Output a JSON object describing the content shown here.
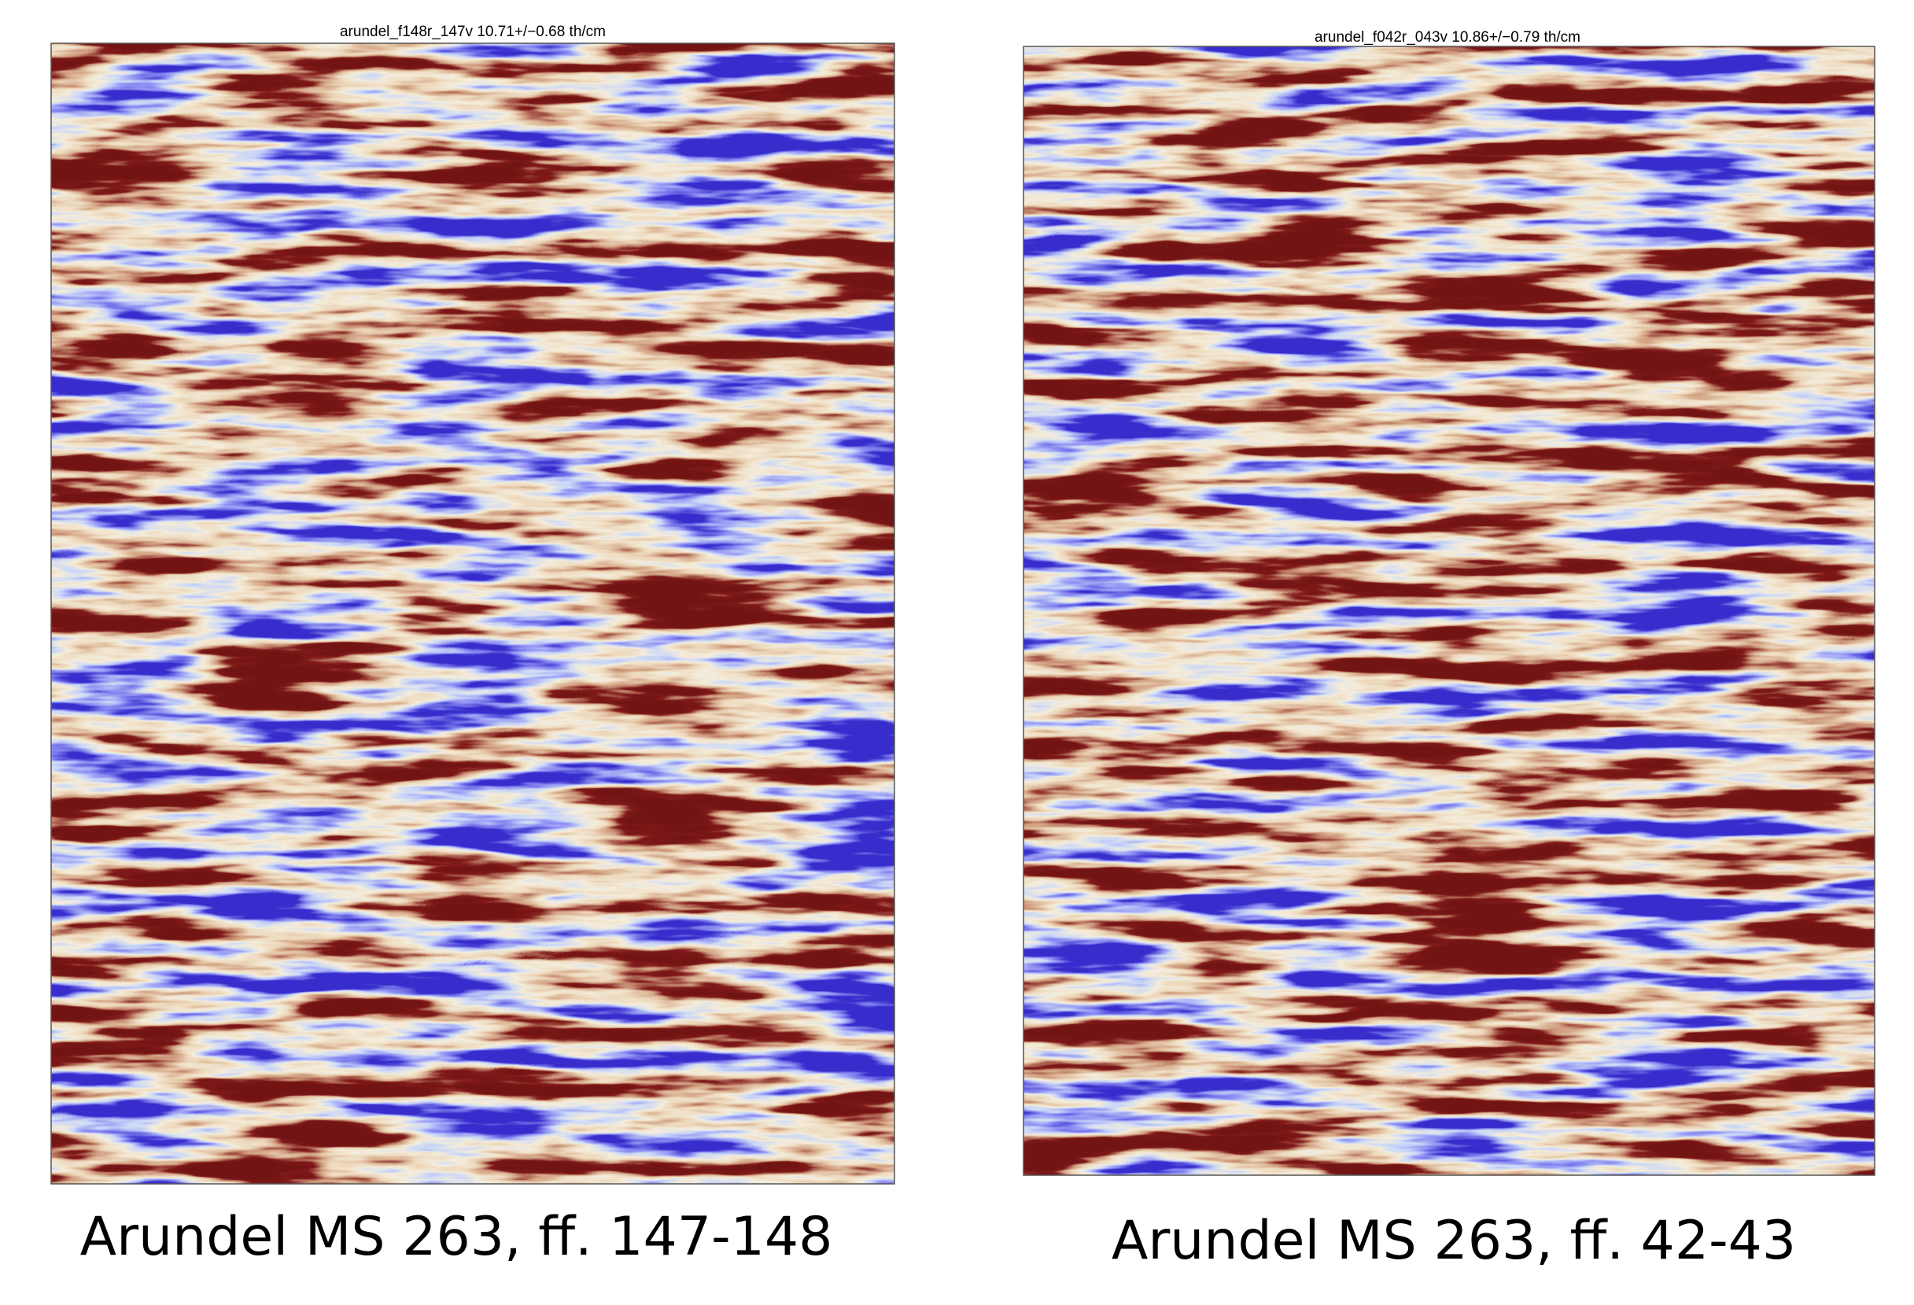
{
  "panels": [
    {
      "title": "arundel_f148r_147v 10.71+/−0.68 th/cm",
      "caption": "Arundel MS 263, ff. 147-148"
    },
    {
      "title": "arundel_f042r_043v 10.86+/−0.79 th/cm",
      "caption": "Arundel MS 263, ff. 42-43"
    }
  ]
}
